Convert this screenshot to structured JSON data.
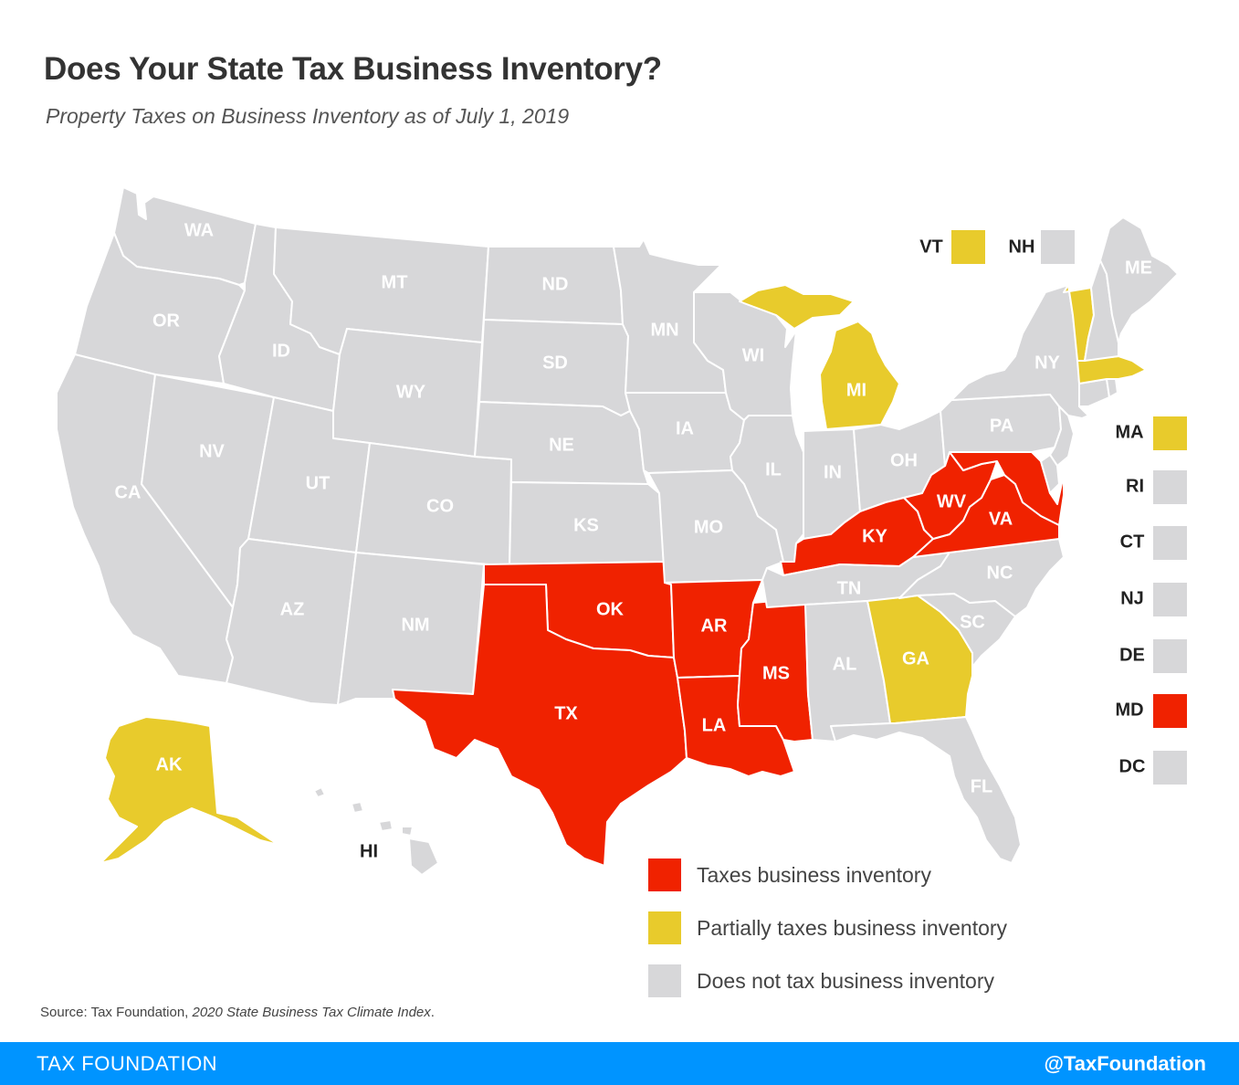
{
  "title": "Does Your State Tax Business Inventory?",
  "subtitle": "Property Taxes on Business Inventory as of July 1, 2019",
  "colors": {
    "taxes": "#f02200",
    "partial": "#e8cb2c",
    "none": "#d7d7d9"
  },
  "legend": [
    {
      "key": "taxes",
      "label": "Taxes business inventory"
    },
    {
      "key": "partial",
      "label": "Partially taxes business inventory"
    },
    {
      "key": "none",
      "label": "Does not tax business inventory"
    }
  ],
  "states": [
    {
      "id": "WA",
      "label": "WA",
      "category": "none"
    },
    {
      "id": "OR",
      "label": "OR",
      "category": "none"
    },
    {
      "id": "CA",
      "label": "CA",
      "category": "none"
    },
    {
      "id": "NV",
      "label": "NV",
      "category": "none"
    },
    {
      "id": "ID",
      "label": "ID",
      "category": "none"
    },
    {
      "id": "MT",
      "label": "MT",
      "category": "none"
    },
    {
      "id": "WY",
      "label": "WY",
      "category": "none"
    },
    {
      "id": "UT",
      "label": "UT",
      "category": "none"
    },
    {
      "id": "AZ",
      "label": "AZ",
      "category": "none"
    },
    {
      "id": "CO",
      "label": "CO",
      "category": "none"
    },
    {
      "id": "NM",
      "label": "NM",
      "category": "none"
    },
    {
      "id": "ND",
      "label": "ND",
      "category": "none"
    },
    {
      "id": "SD",
      "label": "SD",
      "category": "none"
    },
    {
      "id": "NE",
      "label": "NE",
      "category": "none"
    },
    {
      "id": "KS",
      "label": "KS",
      "category": "none"
    },
    {
      "id": "OK",
      "label": "OK",
      "category": "taxes"
    },
    {
      "id": "TX",
      "label": "TX",
      "category": "taxes"
    },
    {
      "id": "MN",
      "label": "MN",
      "category": "none"
    },
    {
      "id": "IA",
      "label": "IA",
      "category": "none"
    },
    {
      "id": "MO",
      "label": "MO",
      "category": "none"
    },
    {
      "id": "AR",
      "label": "AR",
      "category": "taxes"
    },
    {
      "id": "LA",
      "label": "LA",
      "category": "taxes"
    },
    {
      "id": "WI",
      "label": "WI",
      "category": "none"
    },
    {
      "id": "IL",
      "label": "IL",
      "category": "none"
    },
    {
      "id": "MS",
      "label": "MS",
      "category": "taxes"
    },
    {
      "id": "MI",
      "label": "MI",
      "category": "partial"
    },
    {
      "id": "IN",
      "label": "IN",
      "category": "none"
    },
    {
      "id": "KY",
      "label": "KY",
      "category": "taxes"
    },
    {
      "id": "TN",
      "label": "TN",
      "category": "none"
    },
    {
      "id": "AL",
      "label": "AL",
      "category": "none"
    },
    {
      "id": "OH",
      "label": "OH",
      "category": "none"
    },
    {
      "id": "GA",
      "label": "GA",
      "category": "partial"
    },
    {
      "id": "FL",
      "label": "FL",
      "category": "none"
    },
    {
      "id": "SC",
      "label": "SC",
      "category": "none"
    },
    {
      "id": "NC",
      "label": "NC",
      "category": "none"
    },
    {
      "id": "VA",
      "label": "VA",
      "category": "taxes"
    },
    {
      "id": "WV",
      "label": "WV",
      "category": "taxes"
    },
    {
      "id": "PA",
      "label": "PA",
      "category": "none"
    },
    {
      "id": "NY",
      "label": "NY",
      "category": "none"
    },
    {
      "id": "VT",
      "label": "VT",
      "category": "partial"
    },
    {
      "id": "NH",
      "label": "NH",
      "category": "none"
    },
    {
      "id": "ME",
      "label": "ME",
      "category": "none"
    },
    {
      "id": "MA",
      "label": "MA",
      "category": "partial"
    },
    {
      "id": "RI",
      "label": "RI",
      "category": "none"
    },
    {
      "id": "CT",
      "label": "CT",
      "category": "none"
    },
    {
      "id": "NJ",
      "label": "NJ",
      "category": "none"
    },
    {
      "id": "DE",
      "label": "DE",
      "category": "none"
    },
    {
      "id": "MD",
      "label": "MD",
      "category": "taxes"
    },
    {
      "id": "DC",
      "label": "DC",
      "category": "none"
    },
    {
      "id": "AK",
      "label": "AK",
      "category": "partial"
    },
    {
      "id": "HI",
      "label": "HI",
      "category": "none"
    }
  ],
  "source": {
    "prefix": "Source: Tax Foundation, ",
    "publication": "2020 State Business Tax Climate Index",
    "suffix": "."
  },
  "footer": {
    "brand": "TAX FOUNDATION",
    "handle": "@TaxFoundation"
  }
}
